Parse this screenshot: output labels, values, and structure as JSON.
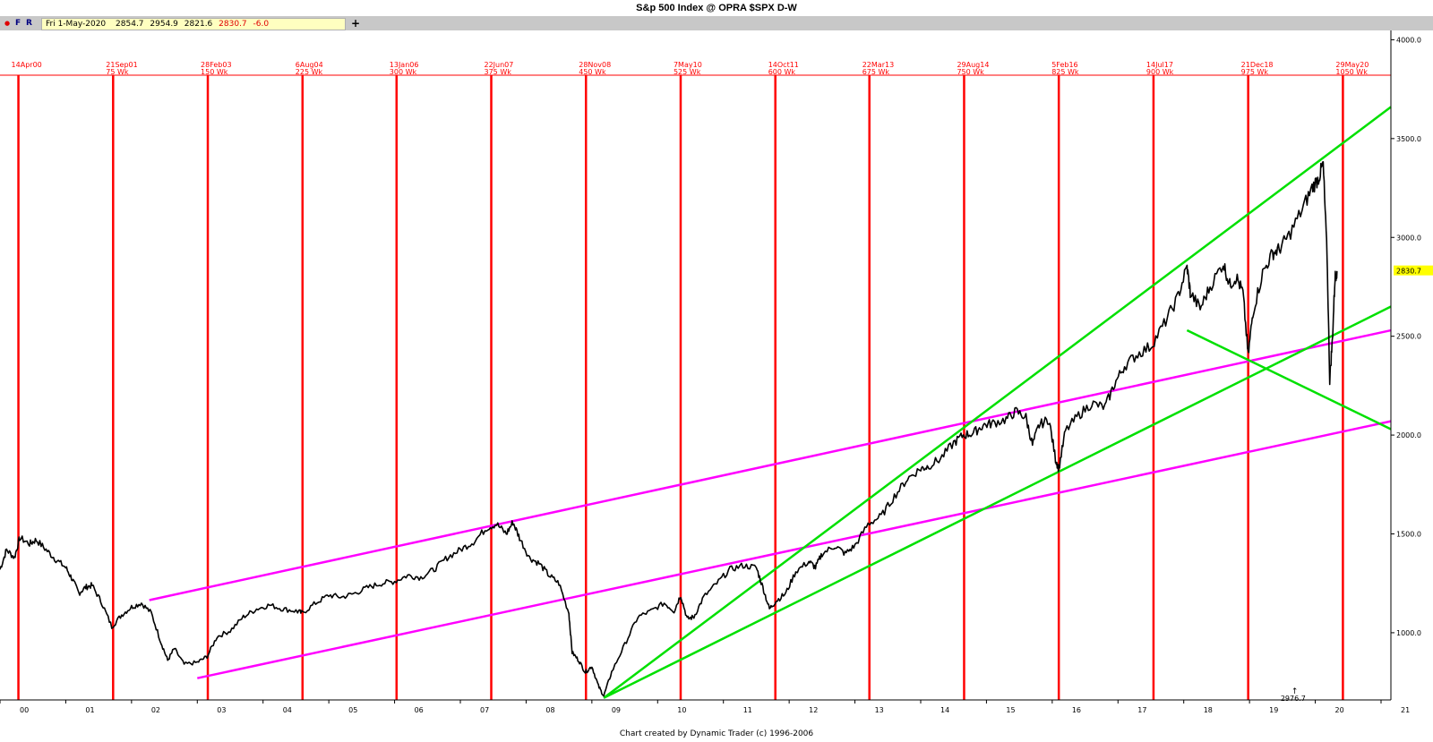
{
  "window": {
    "title": "S&p 500 Index @ OPRA $SPX   D-W"
  },
  "toolbar": {
    "dot": "●",
    "f_label": "F",
    "r_label": "R",
    "plus_label": "+"
  },
  "quote": {
    "date": "Fri 1-May-2020",
    "open": "2854.7",
    "high": "2954.9",
    "low": "2821.6",
    "close": "2830.7",
    "change": "-6.0"
  },
  "footer": {
    "credit": "Chart created by Dynamic Trader  (c) 1996-2006"
  },
  "colors": {
    "cycle_line": "#ff0000",
    "price": "#000000",
    "trend_green": "#00e000",
    "channel_magenta": "#ff00ff",
    "last_price_tag": "#ffff00"
  },
  "chart_data": {
    "type": "line",
    "title": "S&p 500 Index @ OPRA $SPX   D-W",
    "xlabel": "",
    "ylabel": "",
    "xlim": [
      2000.0,
      2021.15
    ],
    "ylim": [
      660,
      4020
    ],
    "grid": false,
    "x_ticks": [
      "00",
      "01",
      "02",
      "03",
      "04",
      "05",
      "06",
      "07",
      "08",
      "09",
      "10",
      "11",
      "12",
      "13",
      "14",
      "15",
      "16",
      "17",
      "18",
      "19",
      "20",
      "21"
    ],
    "y_ticks": [
      "1000.0",
      "1500.0",
      "2000.0",
      "2500.0",
      "3000.0",
      "3500.0",
      "4000.0"
    ],
    "last_price": {
      "x": 2020.33,
      "label": "2830.7"
    },
    "cursor_readout": {
      "x": 2019.5,
      "label": "2976.7"
    },
    "time_cycles": [
      {
        "x": 2000.28,
        "date": "14Apr00",
        "weeks": ""
      },
      {
        "x": 2001.72,
        "date": "21Sep01",
        "weeks": "75 Wk"
      },
      {
        "x": 2003.16,
        "date": "28Feb03",
        "weeks": "150 Wk"
      },
      {
        "x": 2004.6,
        "date": "6Aug04",
        "weeks": "225 Wk"
      },
      {
        "x": 2006.03,
        "date": "13Jan06",
        "weeks": "300 Wk"
      },
      {
        "x": 2007.47,
        "date": "22Jun07",
        "weeks": "375 Wk"
      },
      {
        "x": 2008.91,
        "date": "28Nov08",
        "weeks": "450 Wk"
      },
      {
        "x": 2010.35,
        "date": "7May10",
        "weeks": "525 Wk"
      },
      {
        "x": 2011.79,
        "date": "14Oct11",
        "weeks": "600 Wk"
      },
      {
        "x": 2013.22,
        "date": "22Mar13",
        "weeks": "675 Wk"
      },
      {
        "x": 2014.66,
        "date": "29Aug14",
        "weeks": "750 Wk"
      },
      {
        "x": 2016.1,
        "date": "5Feb16",
        "weeks": "825 Wk"
      },
      {
        "x": 2017.54,
        "date": "14Jul17",
        "weeks": "900 Wk"
      },
      {
        "x": 2018.98,
        "date": "21Dec18",
        "weeks": "975 Wk"
      },
      {
        "x": 2020.42,
        "date": "29May20",
        "weeks": "1050 Wk"
      }
    ],
    "trendlines": [
      {
        "color": "magenta",
        "x1": 2002.27,
        "y1": 1165,
        "x2": 2021.15,
        "y2": 2530
      },
      {
        "color": "magenta",
        "x1": 2003.0,
        "y1": 770,
        "x2": 2021.15,
        "y2": 2070
      },
      {
        "color": "green",
        "x1": 2009.18,
        "y1": 670,
        "x2": 2021.15,
        "y2": 3660
      },
      {
        "color": "green",
        "x1": 2009.18,
        "y1": 670,
        "x2": 2021.15,
        "y2": 2650
      },
      {
        "color": "green",
        "x1": 2018.05,
        "y1": 2530,
        "x2": 2021.15,
        "y2": 2030
      }
    ],
    "series": [
      {
        "color": "black",
        "x": [
          2000.0,
          2000.1,
          2000.22,
          2000.3,
          2000.45,
          2000.55,
          2000.7,
          2000.85,
          2001.0,
          2001.1,
          2001.2,
          2001.3,
          2001.4,
          2001.55,
          2001.7,
          2001.85,
          2002.0,
          2002.15,
          2002.3,
          2002.45,
          2002.55,
          2002.65,
          2002.8,
          2003.0,
          2003.15,
          2003.3,
          2003.5,
          2003.7,
          2003.9,
          2004.1,
          2004.3,
          2004.5,
          2004.6,
          2004.8,
          2005.0,
          2005.2,
          2005.4,
          2005.6,
          2005.8,
          2006.0,
          2006.2,
          2006.4,
          2006.6,
          2006.8,
          2007.0,
          2007.2,
          2007.4,
          2007.55,
          2007.7,
          2007.8,
          2007.9,
          2008.05,
          2008.2,
          2008.35,
          2008.5,
          2008.65,
          2008.7,
          2008.8,
          2008.9,
          2009.0,
          2009.1,
          2009.18,
          2009.3,
          2009.5,
          2009.7,
          2009.9,
          2010.1,
          2010.25,
          2010.35,
          2010.45,
          2010.55,
          2010.7,
          2010.9,
          2011.1,
          2011.3,
          2011.5,
          2011.6,
          2011.7,
          2011.8,
          2011.95,
          2012.1,
          2012.3,
          2012.4,
          2012.5,
          2012.7,
          2012.85,
          2013.0,
          2013.2,
          2013.4,
          2013.6,
          2013.8,
          2014.0,
          2014.1,
          2014.3,
          2014.5,
          2014.65,
          2014.8,
          2014.95,
          2015.1,
          2015.3,
          2015.45,
          2015.6,
          2015.7,
          2015.8,
          2015.95,
          2016.05,
          2016.1,
          2016.2,
          2016.4,
          2016.6,
          2016.8,
          2016.95,
          2017.1,
          2017.3,
          2017.5,
          2017.7,
          2017.9,
          2018.05,
          2018.1,
          2018.25,
          2018.4,
          2018.6,
          2018.7,
          2018.8,
          2018.9,
          2018.98,
          2019.05,
          2019.2,
          2019.35,
          2019.45,
          2019.6,
          2019.8,
          2019.95,
          2020.05,
          2020.12,
          2020.18,
          2020.22,
          2020.26,
          2020.3,
          2020.33
        ],
        "y": [
          1320,
          1420,
          1380,
          1480,
          1450,
          1470,
          1420,
          1370,
          1330,
          1270,
          1200,
          1230,
          1240,
          1150,
          1030,
          1090,
          1130,
          1150,
          1100,
          950,
          860,
          920,
          840,
          850,
          880,
          980,
          1010,
          1080,
          1120,
          1140,
          1120,
          1110,
          1100,
          1150,
          1190,
          1180,
          1200,
          1230,
          1250,
          1260,
          1290,
          1280,
          1320,
          1380,
          1420,
          1460,
          1530,
          1550,
          1500,
          1560,
          1480,
          1380,
          1350,
          1290,
          1250,
          1100,
          900,
          860,
          800,
          830,
          730,
          680,
          800,
          940,
          1080,
          1110,
          1150,
          1110,
          1190,
          1070,
          1080,
          1180,
          1250,
          1320,
          1340,
          1330,
          1230,
          1120,
          1160,
          1200,
          1310,
          1360,
          1330,
          1400,
          1440,
          1400,
          1440,
          1550,
          1590,
          1690,
          1780,
          1830,
          1840,
          1880,
          1960,
          2000,
          2010,
          2050,
          2060,
          2080,
          2120,
          2090,
          1950,
          2050,
          2080,
          1880,
          1830,
          2020,
          2100,
          2160,
          2140,
          2260,
          2350,
          2410,
          2450,
          2560,
          2690,
          2850,
          2720,
          2640,
          2750,
          2870,
          2760,
          2800,
          2720,
          2400,
          2620,
          2820,
          2920,
          2940,
          3010,
          3140,
          3250,
          3300,
          3370,
          2900,
          2280,
          2480,
          2800,
          2830
        ]
      }
    ]
  }
}
